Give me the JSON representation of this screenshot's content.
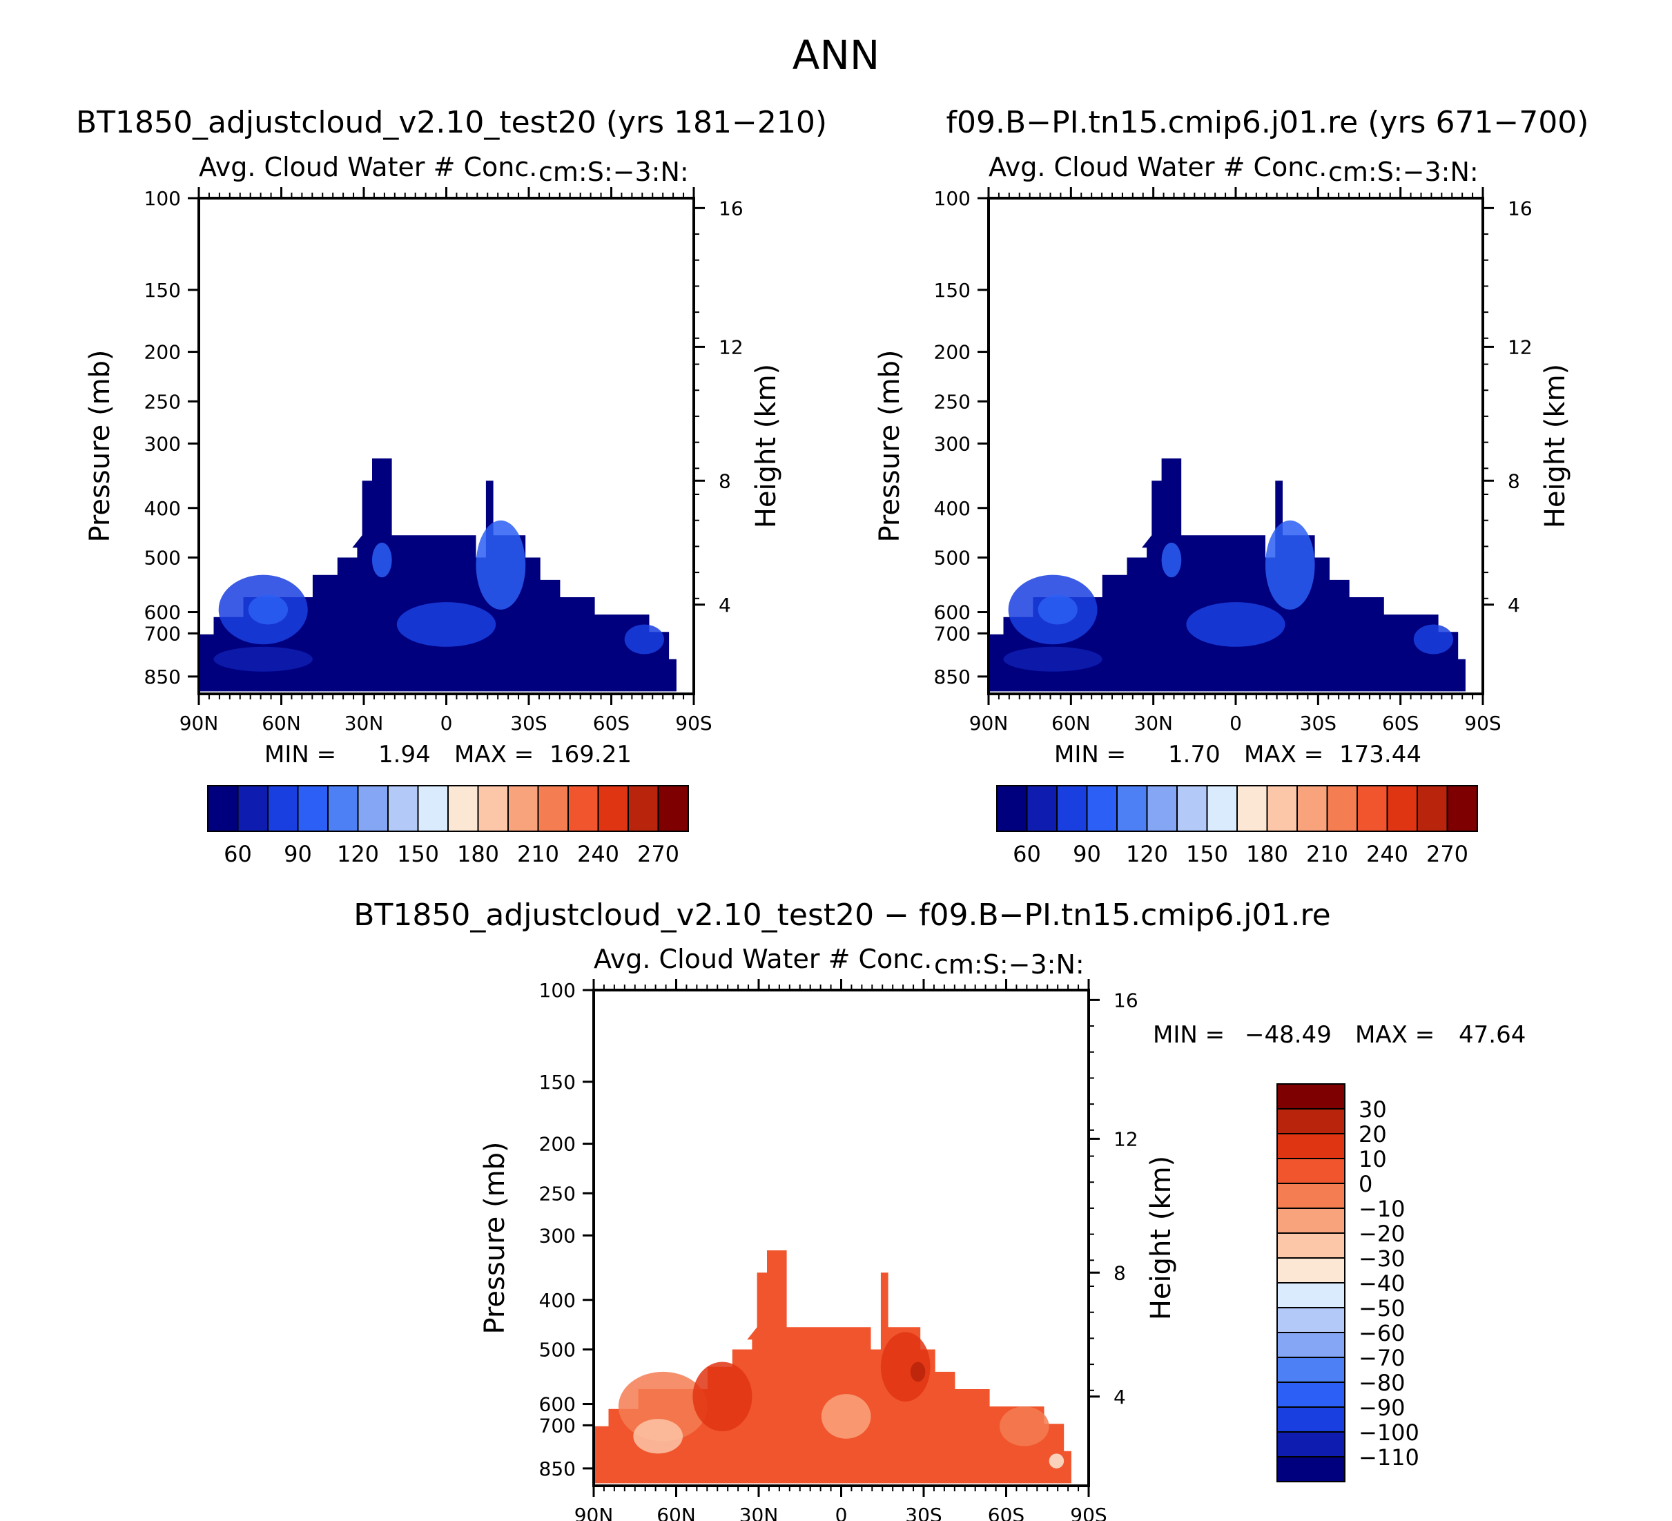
{
  "page_title": "ANN",
  "chart_data": [
    {
      "type": "contour",
      "case_title": "BT1850_adjustcloud_v2.10_test20 (yrs 181-210)",
      "variable_title": "Avg. Cloud Water # Conc.",
      "units": "cm:S:-3:N:",
      "ylabel": "Pressure (mb)",
      "right_ylabel": "Height (km)",
      "x_ticks": [
        "90N",
        "60N",
        "30N",
        "0",
        "30S",
        "60S",
        "90S"
      ],
      "y_ticks": [
        "100",
        "150",
        "200",
        "250",
        "300",
        "400",
        "500",
        "600",
        "700",
        "850"
      ],
      "height_ticks": [
        "16",
        "12",
        "8",
        "4"
      ],
      "stats": {
        "min_label": "MIN =",
        "min": "1.94",
        "max_label": "MAX =",
        "max": "169.21"
      },
      "colorbar": {
        "orientation": "horizontal",
        "labels": [
          "60",
          "90",
          "120",
          "150",
          "180",
          "210",
          "240",
          "270"
        ],
        "colors": [
          "#00007f",
          "#0e1db0",
          "#1a3fe0",
          "#2b5ff5",
          "#4d7ff5",
          "#84a6f5",
          "#b3c9f8",
          "#d9ebfc",
          "#fce7d4",
          "#fcc6a8",
          "#f9a37d",
          "#f57d52",
          "#f0552d",
          "#e03513",
          "#b8250c",
          "#7f0000"
        ]
      }
    },
    {
      "type": "contour",
      "case_title": "f09.B-PI.tn15.cmip6.j01.re (yrs 671-700)",
      "variable_title": "Avg. Cloud Water # Conc.",
      "units": "cm:S:-3:N:",
      "ylabel": "Pressure (mb)",
      "right_ylabel": "Height (km)",
      "x_ticks": [
        "90N",
        "60N",
        "30N",
        "0",
        "30S",
        "60S",
        "90S"
      ],
      "y_ticks": [
        "100",
        "150",
        "200",
        "250",
        "300",
        "400",
        "500",
        "600",
        "700",
        "850"
      ],
      "height_ticks": [
        "16",
        "12",
        "8",
        "4"
      ],
      "stats": {
        "min_label": "MIN =",
        "min": "1.70",
        "max_label": "MAX =",
        "max": "173.44"
      },
      "colorbar": {
        "orientation": "horizontal",
        "labels": [
          "60",
          "90",
          "120",
          "150",
          "180",
          "210",
          "240",
          "270"
        ],
        "colors": [
          "#00007f",
          "#0e1db0",
          "#1a3fe0",
          "#2b5ff5",
          "#4d7ff5",
          "#84a6f5",
          "#b3c9f8",
          "#d9ebfc",
          "#fce7d4",
          "#fcc6a8",
          "#f9a37d",
          "#f57d52",
          "#f0552d",
          "#e03513",
          "#b8250c",
          "#7f0000"
        ]
      }
    },
    {
      "type": "contour",
      "case_title": "BT1850_adjustcloud_v2.10_test20 - f09.B-PI.tn15.cmip6.j01.re",
      "variable_title": "Avg. Cloud Water # Conc.",
      "units": "cm:S:-3:N:",
      "ylabel": "Pressure (mb)",
      "right_ylabel": "Height (km)",
      "x_ticks": [
        "90N",
        "60N",
        "30N",
        "0",
        "30S",
        "60S",
        "90S"
      ],
      "y_ticks": [
        "100",
        "150",
        "200",
        "250",
        "300",
        "400",
        "500",
        "600",
        "700",
        "850"
      ],
      "height_ticks": [
        "16",
        "12",
        "8",
        "4"
      ],
      "stats": {
        "min_label": "MIN =",
        "min": "-48.49",
        "max_label": "MAX =",
        "max": "47.64"
      },
      "colorbar": {
        "orientation": "vertical",
        "labels": [
          "30",
          "20",
          "10",
          "0",
          "-10",
          "-20",
          "-30",
          "-40",
          "-50",
          "-60",
          "-70",
          "-80",
          "-90",
          "-100",
          "-110"
        ],
        "colors": [
          "#7f0000",
          "#b8250c",
          "#e03513",
          "#f0552d",
          "#f57d52",
          "#f9a37d",
          "#fcc6a8",
          "#fce7d4",
          "#d9ebfc",
          "#b3c9f8",
          "#84a6f5",
          "#4d7ff5",
          "#2b5ff5",
          "#1a3fe0",
          "#0e1db0",
          "#00007f"
        ]
      }
    }
  ]
}
